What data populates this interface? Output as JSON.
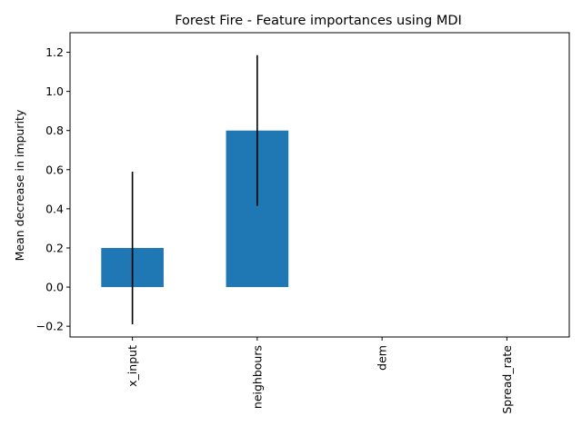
{
  "chart_data": {
    "type": "bar",
    "title": "Forest Fire - Feature importances using MDI",
    "xlabel": "",
    "ylabel": "Mean decrease in impurity",
    "categories": [
      "x_input",
      "neighbours",
      "dem",
      "Spread_rate"
    ],
    "values": [
      0.2,
      0.8,
      0.0,
      0.0
    ],
    "errors": [
      0.39,
      0.385,
      0.0,
      0.0
    ],
    "ylim": [
      -0.255,
      1.3
    ],
    "yticks": [
      -0.2,
      0.0,
      0.2,
      0.4,
      0.6,
      0.8,
      1.0,
      1.2
    ],
    "ytick_labels": [
      "−0.2",
      "0.0",
      "0.2",
      "0.4",
      "0.6",
      "0.8",
      "1.0",
      "1.2"
    ],
    "grid": false,
    "bar_color": "#1f77b4",
    "error_color": "#000000"
  }
}
